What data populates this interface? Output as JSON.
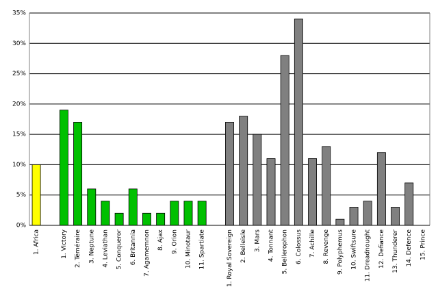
{
  "chart_data": {
    "type": "bar",
    "categories": [
      "1. Africa",
      null,
      "1. Victory",
      "2. Téméraire",
      "3. Neptune",
      "4. Leviathan",
      "5. Conqueror",
      "6. Britannia",
      "7. Agamemnon",
      "8. Ajax",
      "9. Orion",
      "10. Minotaur",
      "11. Spartiate",
      null,
      "1. Royal Sovereign",
      "2. Belleisle",
      "3. Mars",
      "4. Tonnant",
      "5. Bellerophon",
      "6. Colossus",
      "7. Achille",
      "8. Revenge",
      "9. Polyphemus",
      "10. Swiftsure",
      "11. Dreadnought",
      "12. Defiance",
      "13. Thunderer",
      "14. Defence",
      "15. Prince"
    ],
    "values": [
      10,
      null,
      19,
      17,
      6,
      4,
      2,
      6,
      2,
      2,
      4,
      4,
      4,
      null,
      17,
      18,
      15,
      11,
      28,
      34,
      11,
      13,
      1,
      3,
      4,
      12,
      3,
      7,
      0
    ],
    "colors": [
      "#ffff00",
      null,
      "#00c000",
      "#00c000",
      "#00c000",
      "#00c000",
      "#00c000",
      "#00c000",
      "#00c000",
      "#00c000",
      "#00c000",
      "#00c000",
      "#00c000",
      null,
      "#808080",
      "#808080",
      "#808080",
      "#808080",
      "#808080",
      "#808080",
      "#808080",
      "#808080",
      "#808080",
      "#808080",
      "#808080",
      "#808080",
      "#808080",
      "#808080",
      "#808080"
    ],
    "ylim": [
      0,
      35
    ],
    "yticks": [
      {
        "value": 0,
        "label": "0%"
      },
      {
        "value": 5,
        "label": "5%"
      },
      {
        "value": 10,
        "label": "10%"
      },
      {
        "value": 15,
        "label": "15%"
      },
      {
        "value": 20,
        "label": "20%"
      },
      {
        "value": 25,
        "label": "25%"
      },
      {
        "value": 30,
        "label": "30%"
      },
      {
        "value": 35,
        "label": "35%"
      }
    ],
    "grid": true
  }
}
